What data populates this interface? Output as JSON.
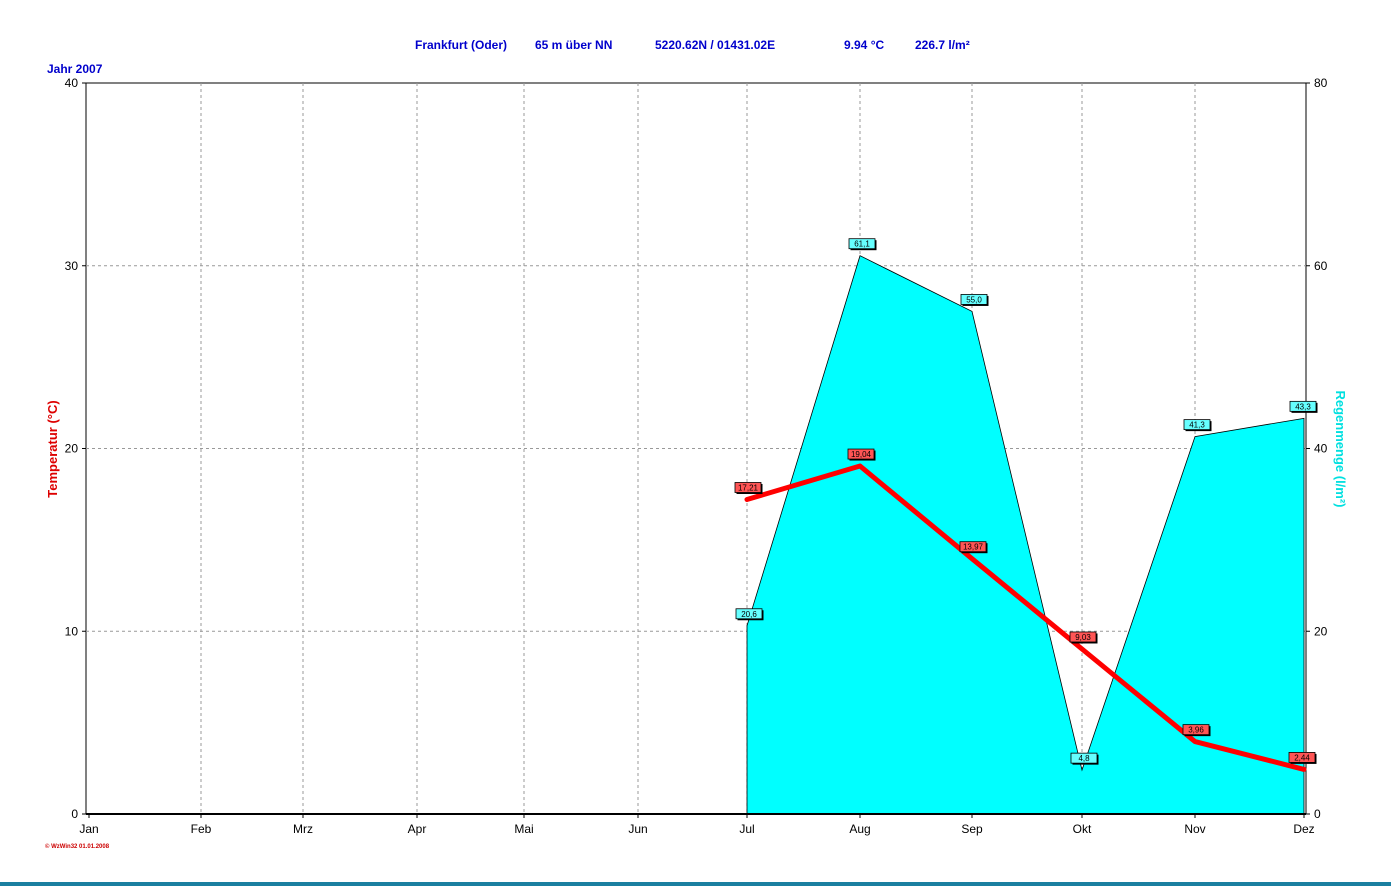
{
  "header": {
    "station": "Frankfurt (Oder)",
    "altitude": "65 m über NN",
    "coords": "5220.62N / 01431.02E",
    "mean_temp": "9.94 °C",
    "total_rain": "226.7 l/m²",
    "year": "Jahr  2007"
  },
  "footer": "© WzWin32  01.01.2008",
  "colors": {
    "temperature": "#ff0000",
    "rain_fill": "#00ffff",
    "header": "#0000cc",
    "grid": "#999999"
  },
  "chart_data": {
    "type": "area",
    "categories": [
      "Jan",
      "Feb",
      "Mrz",
      "Apr",
      "Mai",
      "Jun",
      "Jul",
      "Aug",
      "Sep",
      "Okt",
      "Nov",
      "Dez"
    ],
    "ylabel": "Temperatur  (°C)",
    "y2label": "Regenmenge  (l/m²)",
    "ylim": [
      0,
      40
    ],
    "y2lim": [
      0,
      80
    ],
    "yticks": [
      "0",
      "10",
      "20",
      "30",
      "40"
    ],
    "y2ticks": [
      "0",
      "20",
      "40",
      "60",
      "80"
    ],
    "grid": true,
    "series": [
      {
        "name": "Temperatur",
        "type": "line",
        "axis": "left",
        "x": [
          "Jul",
          "Aug",
          "Sep",
          "Okt",
          "Nov",
          "Dez"
        ],
        "values": [
          17.21,
          19.04,
          13.97,
          9.03,
          3.96,
          2.44
        ],
        "labels": [
          "17,21",
          "19,04",
          "13,97",
          "9,03",
          "3,96",
          "2,44"
        ]
      },
      {
        "name": "Regenmenge",
        "type": "area",
        "axis": "right",
        "x": [
          "Jul",
          "Aug",
          "Sep",
          "Okt",
          "Nov",
          "Dez"
        ],
        "values": [
          20.6,
          61.1,
          55.0,
          4.8,
          41.3,
          43.3
        ],
        "labels": [
          "20,6",
          "61,1",
          "55,0",
          "4,8",
          "41,3",
          "43,3"
        ]
      }
    ]
  }
}
